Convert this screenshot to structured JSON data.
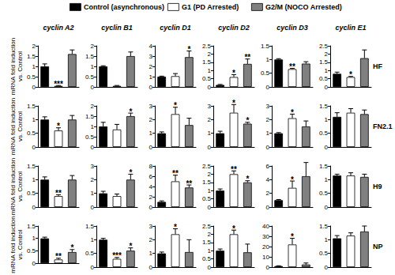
{
  "series": [
    {
      "name": "Control (asynchronous)",
      "color": "#000000"
    },
    {
      "name": "G1 (PD Arrested)",
      "color": "#ffffff"
    },
    {
      "name": "G2/M (NOCO Arrested)",
      "color": "#808080"
    }
  ],
  "column_titles": [
    "cyclin A2",
    "cyclin B1",
    "cyclin D1",
    "cyclin D2",
    "cyclin D3",
    "cyclin E1"
  ],
  "row_labels": [
    "HF",
    "FN2.1",
    "H9",
    "NP"
  ],
  "chart_data": [
    {
      "type": "bar",
      "ylabel": "mRNA fold induction\nvs. Control",
      "categories": [
        null,
        null,
        null
      ],
      "values": [
        1.0,
        0.05,
        1.6
      ],
      "errors": [
        0.12,
        0.02,
        0.2
      ],
      "annotations": [
        null,
        "***",
        null
      ],
      "ylim": [
        0,
        2
      ],
      "yticks": [
        0,
        0.5,
        1,
        1.5,
        2
      ],
      "tick_labels": "y"
    },
    {
      "type": "bar",
      "categories": [
        null,
        null,
        null
      ],
      "values": [
        1.0,
        0.05,
        1.5
      ],
      "errors": [
        0.03,
        0.02,
        0.2
      ],
      "annotations": [
        null,
        null,
        null
      ],
      "ylim": [
        0,
        2
      ],
      "yticks": [
        0,
        0.5,
        1,
        1.5,
        2
      ],
      "tick_labels": "y"
    },
    {
      "type": "bar",
      "categories": [
        null,
        null,
        null
      ],
      "values": [
        1.0,
        1.05,
        2.9
      ],
      "errors": [
        0.05,
        0.25,
        0.6
      ],
      "annotations": [
        null,
        null,
        "*"
      ],
      "ylim": [
        0,
        4
      ],
      "yticks": [
        0,
        1,
        2,
        3,
        4
      ],
      "tick_labels": "y"
    },
    {
      "type": "bar",
      "categories": [
        null,
        null,
        null
      ],
      "values": [
        0.12,
        0.6,
        1.4
      ],
      "errors": [
        0.03,
        0.15,
        0.3
      ],
      "annotations": [
        null,
        "*",
        "**"
      ],
      "ylim": [
        0,
        2.5
      ],
      "yticks": [
        0,
        0.5,
        1,
        1.5,
        2,
        2.5
      ],
      "tick_labels": "y"
    },
    {
      "type": "bar",
      "categories": [
        null,
        null,
        null
      ],
      "values": [
        1.0,
        0.65,
        0.85
      ],
      "errors": [
        0.03,
        0.03,
        0.07
      ],
      "annotations": [
        null,
        "**",
        null
      ],
      "ylim": [
        0,
        1.5
      ],
      "yticks": [
        0,
        0.5,
        1,
        1.5
      ],
      "tick_labels": "y"
    },
    {
      "type": "bar",
      "categories": [
        null,
        null,
        null
      ],
      "values": [
        0.8,
        0.6,
        1.75
      ],
      "errors": [
        0.1,
        0.04,
        0.5
      ],
      "annotations": [
        null,
        "*",
        null
      ],
      "ylim": [
        0,
        2.5
      ],
      "yticks": [
        0,
        0.5,
        1,
        1.5,
        2,
        2.5
      ],
      "tick_labels": "y"
    },
    {
      "type": "bar",
      "ylabel": "mRNA fold induction\nvs. Control",
      "categories": [
        null,
        null,
        null
      ],
      "values": [
        1.0,
        0.6,
        1.0
      ],
      "errors": [
        0.1,
        0.1,
        0.15
      ],
      "annotations": [
        null,
        "*",
        null
      ],
      "ylim": [
        0,
        1.5
      ],
      "yticks": [
        0,
        0.5,
        1,
        1.5
      ],
      "tick_labels": "y"
    },
    {
      "type": "bar",
      "categories": [
        null,
        null,
        null
      ],
      "values": [
        1.0,
        0.85,
        1.5
      ],
      "errors": [
        0.2,
        0.25,
        0.15
      ],
      "annotations": [
        null,
        null,
        "*"
      ],
      "ylim": [
        0,
        2
      ],
      "yticks": [
        0,
        0.5,
        1,
        1.5,
        2
      ],
      "tick_labels": "y"
    },
    {
      "type": "bar",
      "categories": [
        null,
        null,
        null
      ],
      "values": [
        1.0,
        2.4,
        1.6
      ],
      "errors": [
        0.1,
        0.5,
        0.5
      ],
      "annotations": [
        null,
        "*",
        null
      ],
      "ylim": [
        0,
        3
      ],
      "yticks": [
        0,
        1,
        2,
        3
      ],
      "tick_labels": "y"
    },
    {
      "type": "bar",
      "categories": [
        null,
        null,
        null
      ],
      "values": [
        1.0,
        2.5,
        1.7
      ],
      "errors": [
        0.15,
        0.6,
        0.1
      ],
      "annotations": [
        null,
        "*",
        "*"
      ],
      "ylim": [
        0,
        3
      ],
      "yticks": [
        0,
        1,
        2,
        3
      ],
      "tick_labels": "y"
    },
    {
      "type": "bar",
      "categories": [
        null,
        null,
        null
      ],
      "values": [
        1.0,
        2.1,
        1.5
      ],
      "errors": [
        0.05,
        0.3,
        0.4
      ],
      "annotations": [
        null,
        "*",
        null
      ],
      "ylim": [
        0,
        3
      ],
      "yticks": [
        0,
        1,
        2,
        3
      ],
      "tick_labels": "y"
    },
    {
      "type": "bar",
      "categories": [
        null,
        null,
        null
      ],
      "values": [
        1.1,
        1.25,
        1.2
      ],
      "errors": [
        0.15,
        0.15,
        0.15
      ],
      "annotations": [
        null,
        null,
        null
      ],
      "ylim": [
        0,
        1.5
      ],
      "yticks": [
        0,
        0.5,
        1,
        1.5
      ],
      "tick_labels": "y"
    },
    {
      "type": "bar",
      "ylabel": "mRNA fold induction\nvs. Control",
      "categories": [
        null,
        null,
        null
      ],
      "values": [
        1.0,
        0.4,
        1.0
      ],
      "errors": [
        0.1,
        0.05,
        0.15
      ],
      "annotations": [
        null,
        "**",
        null
      ],
      "ylim": [
        0,
        1.5
      ],
      "yticks": [
        0,
        0.5,
        1,
        1.5
      ],
      "tick_labels": "y"
    },
    {
      "type": "bar",
      "categories": [
        null,
        null,
        null
      ],
      "values": [
        1.0,
        0.8,
        2.0
      ],
      "errors": [
        0.15,
        0.15,
        0.4
      ],
      "annotations": [
        null,
        null,
        "*"
      ],
      "ylim": [
        0,
        3
      ],
      "yticks": [
        0,
        1,
        2,
        3
      ],
      "tick_labels": "y"
    },
    {
      "type": "bar",
      "categories": [
        null,
        null,
        null
      ],
      "values": [
        1.0,
        5.0,
        3.8
      ],
      "errors": [
        0.2,
        1.2,
        0.5
      ],
      "annotations": [
        null,
        "**",
        "**"
      ],
      "ylim": [
        0,
        8
      ],
      "yticks": [
        0,
        2,
        4,
        6,
        8
      ],
      "tick_labels": "y"
    },
    {
      "type": "bar",
      "categories": [
        null,
        null,
        null
      ],
      "values": [
        1.0,
        2.0,
        1.5
      ],
      "errors": [
        0.1,
        0.2,
        0.1
      ],
      "annotations": [
        null,
        "**",
        "*"
      ],
      "ylim": [
        0,
        2.5
      ],
      "yticks": [
        0,
        0.5,
        1,
        1.5,
        2,
        2.5
      ],
      "tick_labels": "y"
    },
    {
      "type": "bar",
      "categories": [
        null,
        null,
        null
      ],
      "values": [
        1.0,
        2.8,
        4.5
      ],
      "errors": [
        0.1,
        1.0,
        2.0
      ],
      "annotations": [
        null,
        "*",
        null
      ],
      "ylim": [
        0,
        6
      ],
      "yticks": [
        0,
        2,
        4,
        6
      ],
      "tick_labels": "y"
    },
    {
      "type": "bar",
      "categories": [
        null,
        null,
        null
      ],
      "values": [
        1.15,
        1.15,
        1.1
      ],
      "errors": [
        0.05,
        0.1,
        0.1
      ],
      "annotations": [
        null,
        null,
        null
      ],
      "ylim": [
        0,
        1.5
      ],
      "yticks": [
        0,
        0.5,
        1,
        1.5
      ],
      "tick_labels": "y"
    },
    {
      "type": "bar",
      "ylabel": "mRNA fold induction\nvs. Control",
      "categories": [
        null,
        null,
        null
      ],
      "values": [
        1.0,
        0.15,
        0.45
      ],
      "errors": [
        0.05,
        0.05,
        0.1
      ],
      "annotations": [
        null,
        "**",
        "*"
      ],
      "ylim": [
        0,
        1.5
      ],
      "yticks": [
        0,
        0.5,
        1,
        1.5
      ],
      "tick_labels": "y"
    },
    {
      "type": "bar",
      "categories": [
        null,
        null,
        null
      ],
      "values": [
        1.0,
        0.3,
        0.6
      ],
      "errors": [
        0.05,
        0.05,
        0.1
      ],
      "annotations": [
        null,
        "***",
        "*"
      ],
      "ylim": [
        0,
        1.5
      ],
      "yticks": [
        0,
        0.5,
        1,
        1.5
      ],
      "tick_labels": "y"
    },
    {
      "type": "bar",
      "categories": [
        null,
        null,
        null
      ],
      "values": [
        1.0,
        2.4,
        1.1
      ],
      "errors": [
        0.1,
        0.4,
        0.9
      ],
      "annotations": [
        null,
        "*",
        null
      ],
      "ylim": [
        0,
        3
      ],
      "yticks": [
        0,
        1,
        2,
        3
      ],
      "tick_labels": "y"
    },
    {
      "type": "bar",
      "categories": [
        null,
        null,
        null
      ],
      "values": [
        1.0,
        2.0,
        0.9
      ],
      "errors": [
        0.1,
        0.25,
        0.5
      ],
      "annotations": [
        null,
        "*",
        null
      ],
      "ylim": [
        0,
        2.5
      ],
      "yticks": [
        0,
        0.5,
        1,
        1.5,
        2,
        2.5
      ],
      "tick_labels": "y"
    },
    {
      "type": "bar",
      "categories": [
        null,
        null,
        null
      ],
      "values": [
        1.0,
        22,
        2.5
      ],
      "errors": [
        0.3,
        6,
        1.5
      ],
      "annotations": [
        null,
        "*",
        null
      ],
      "ylim": [
        0,
        40
      ],
      "yticks": [
        0,
        10,
        20,
        30,
        40
      ],
      "tick_labels": "y"
    },
    {
      "type": "bar",
      "categories": [
        null,
        null,
        null
      ],
      "values": [
        1.05,
        1.15,
        1.3
      ],
      "errors": [
        0.1,
        0.1,
        0.2
      ],
      "annotations": [
        null,
        null,
        null
      ],
      "ylim": [
        0,
        1.5
      ],
      "yticks": [
        0,
        0.5,
        1,
        1.5
      ],
      "tick_labels": "y"
    }
  ]
}
